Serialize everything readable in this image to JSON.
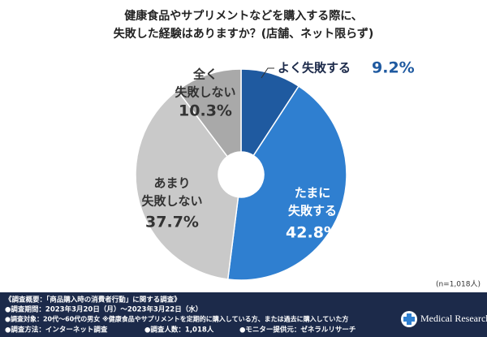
{
  "chart_data": {
    "type": "donut",
    "title": [
      "健康食品やサプリメントなどを購入する際に、",
      "失敗した経験はありますか？(店舗、ネット限らず)"
    ],
    "categories": [
      [
        "よく失敗する"
      ],
      [
        "たまに",
        "失敗する"
      ],
      [
        "あまり",
        "失敗しない"
      ],
      [
        "全く",
        "失敗しない"
      ]
    ],
    "values": [
      9.2,
      42.8,
      37.7,
      10.3
    ],
    "value_labels": [
      "9.2%",
      "42.8%",
      "37.7%",
      "10.3%"
    ],
    "colors": [
      "#1f5aa0",
      "#2f7fd0",
      "#c9c9c9",
      "#a9a9a9"
    ],
    "note": "(n=1,018人)"
  },
  "footer": {
    "lines": [
      "《調査概要：「商品購入時の消費者行動」に関する調査》",
      "●調査期間：2023年3月20日（月）～2023年3月22日（水）",
      "●調査対象：20代～60代の男女 ※健康食品やサプリメントを定期的に購入している方、または過去に購入していた方"
    ],
    "items": [
      "●調査方法：インターネット調査",
      "●調査人数：1,018人",
      "●モニター提供元：ゼネラルリサーチ"
    ],
    "logo": "Medical Research"
  }
}
